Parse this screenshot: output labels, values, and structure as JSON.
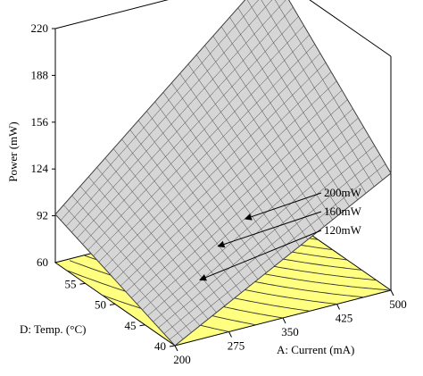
{
  "chart_data": {
    "type": "surface3d",
    "zlabel": "Power (mW)",
    "xlabel": "A: Current (mA)",
    "ylabel": "D: Temp. (°C)",
    "xlim": [
      200,
      500
    ],
    "ylim": [
      40,
      60
    ],
    "zlim": [
      60,
      220
    ],
    "x_ticks": [
      "200",
      "275",
      "350",
      "425",
      "500"
    ],
    "y_ticks": [
      "40",
      "45",
      "50",
      "55",
      "60"
    ],
    "z_ticks": [
      "92",
      "124",
      "156",
      "188",
      "220"
    ],
    "z_floor_label": "60",
    "surface_corners": [
      {
        "current": 200,
        "temp": 40,
        "power": 60
      },
      {
        "current": 500,
        "temp": 40,
        "power": 140
      },
      {
        "current": 200,
        "temp": 60,
        "power": 93
      },
      {
        "current": 500,
        "temp": 60,
        "power": 222
      }
    ],
    "contours": [
      {
        "label": "200mW",
        "value": 200
      },
      {
        "label": "160mW",
        "value": 160
      },
      {
        "label": "120mW",
        "value": 120
      }
    ],
    "colors": {
      "floor": "#ffff80",
      "surface": "#d6d6d6",
      "mesh": "#505050"
    }
  }
}
